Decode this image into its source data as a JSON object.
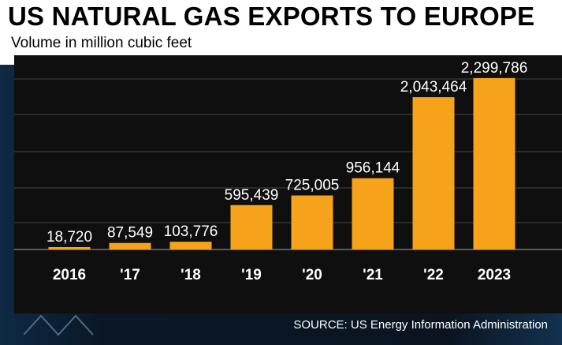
{
  "header": {
    "title": "US NATURAL GAS EXPORTS TO EUROPE",
    "subtitle": "Volume in million cubic feet"
  },
  "footer": {
    "source": "SOURCE: US Energy Information Administration"
  },
  "colors": {
    "bar": "#f7a21b",
    "bar_highlight": "#ffbf3a",
    "panel": "#0f0f0f",
    "title_bg": "#ffffff",
    "text": "#ffffff"
  },
  "chart_data": {
    "type": "bar",
    "categories": [
      "2016",
      "'17",
      "'18",
      "'19",
      "'20",
      "'21",
      "'22",
      "2023"
    ],
    "values": [
      18720,
      87549,
      103776,
      595439,
      725005,
      956144,
      2043464,
      2299786
    ],
    "value_labels": [
      "18,720",
      "87,549",
      "103,776",
      "595,439",
      "725,005",
      "956,144",
      "2,043,464",
      "2,299,786"
    ],
    "title": "US NATURAL GAS EXPORTS TO EUROPE",
    "subtitle": "Volume in million cubic feet",
    "xlabel": "",
    "ylabel": "",
    "ylim": [
      0,
      2500000
    ],
    "grid": true,
    "legend": "none"
  }
}
